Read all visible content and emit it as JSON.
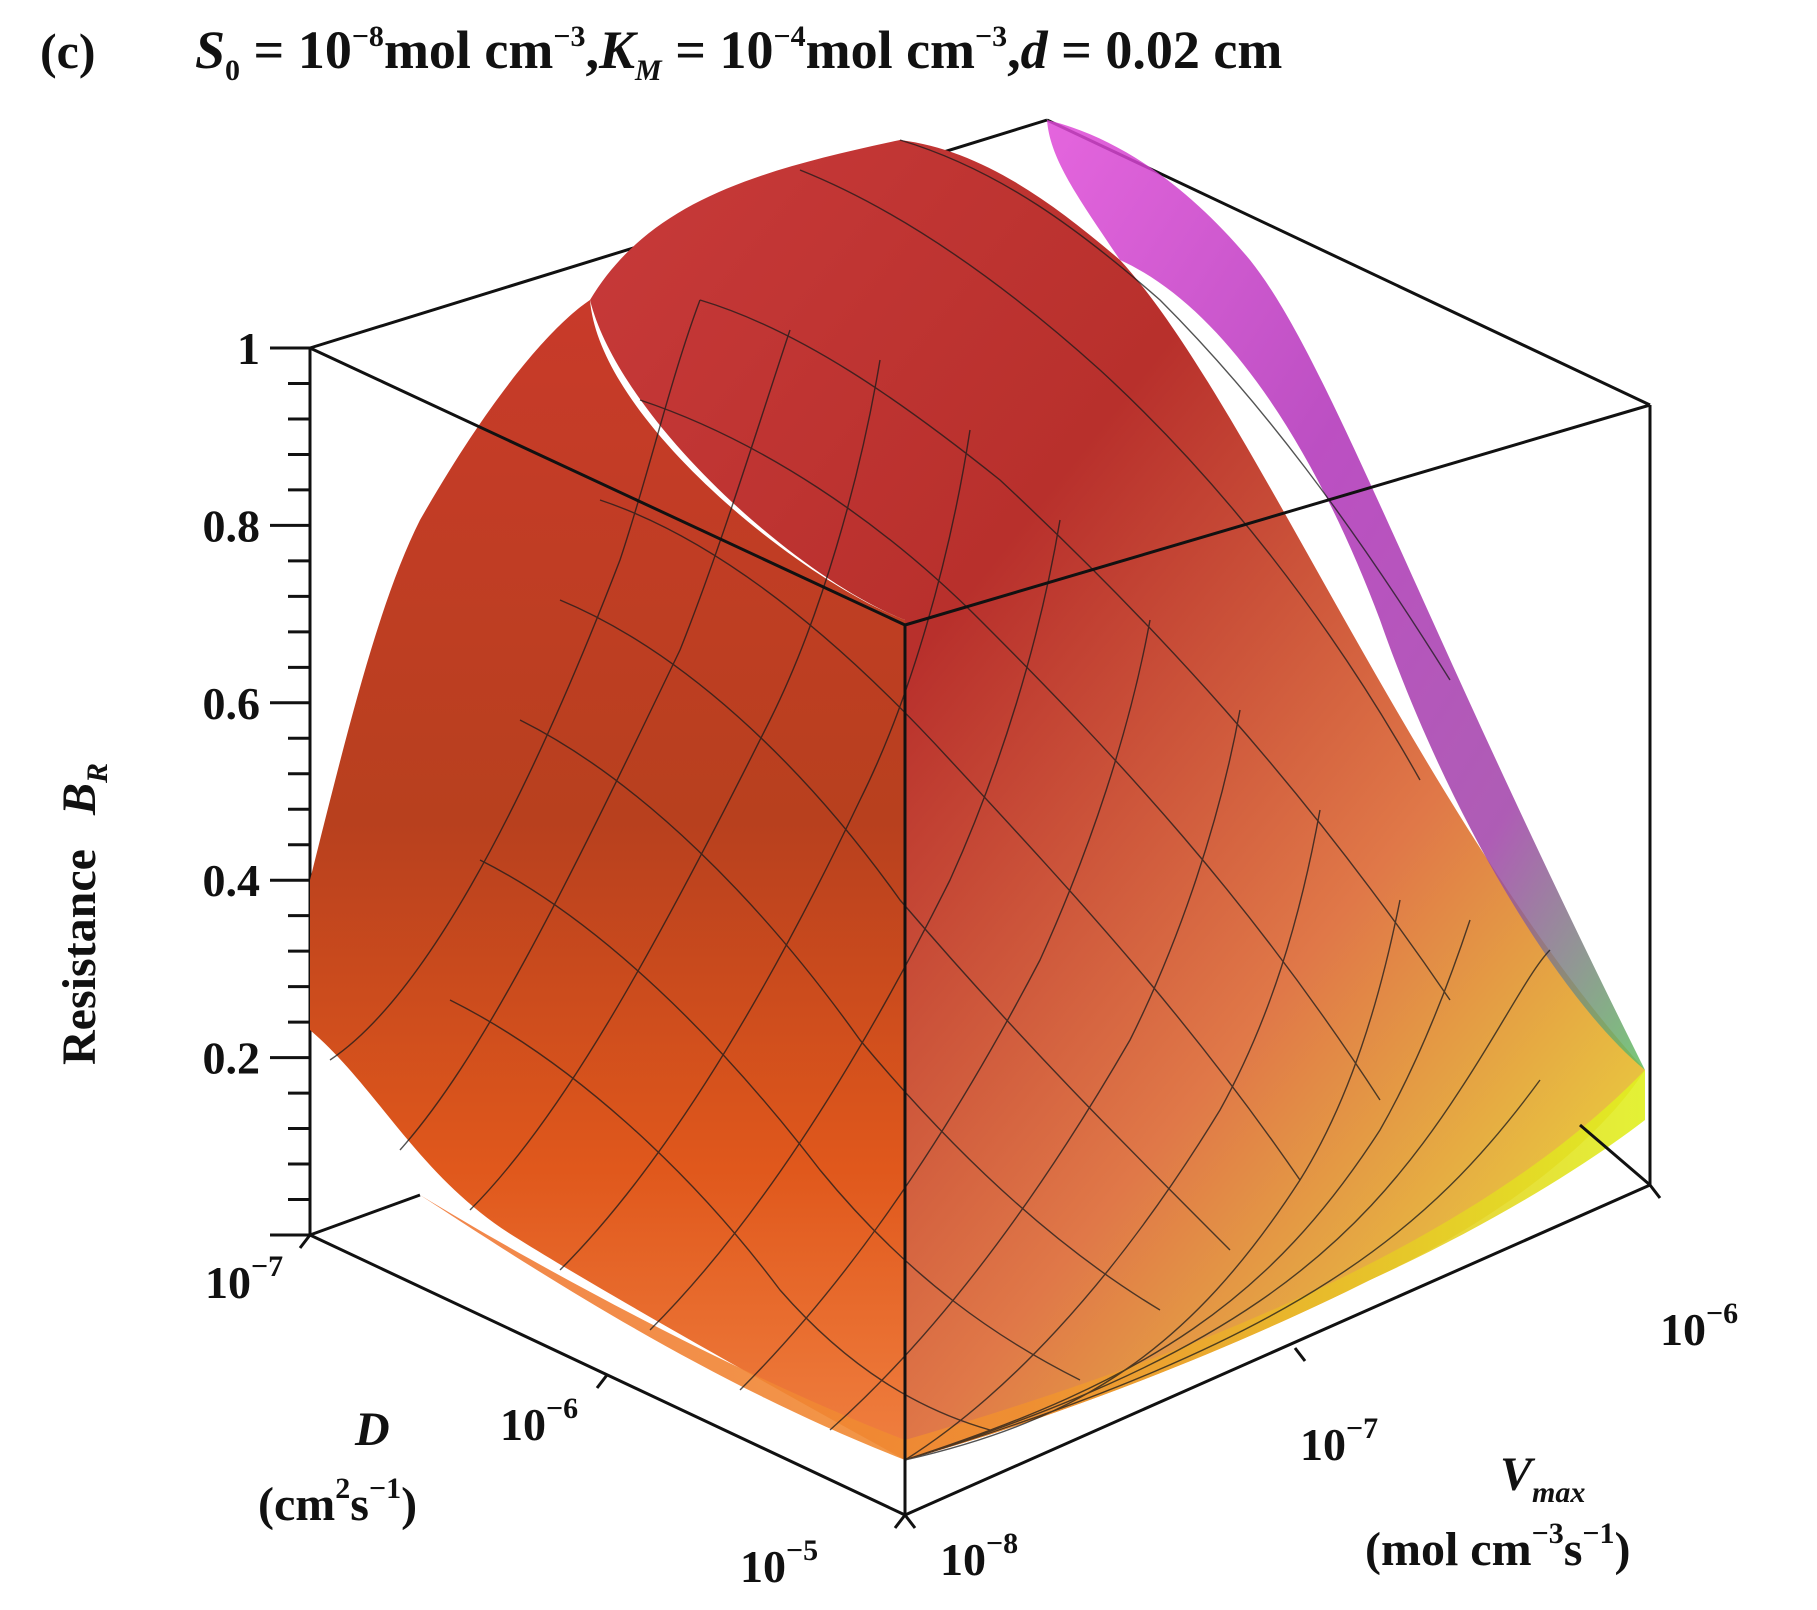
{
  "figure": {
    "panel_label": "(c)",
    "title": {
      "s0_symbol": "S",
      "s0_sub": "0",
      "s0_eq": " = 10",
      "s0_exp": "−8",
      "s0_unit": "mol cm",
      "s0_unit_exp": "−3",
      "km_sep": ",",
      "km_symbol": "K",
      "km_sub": "M",
      "km_eq": " = 10",
      "km_exp": "−4",
      "km_unit": "mol cm",
      "km_unit_exp": "−3",
      "d_sep": ",",
      "d_symbol": "d",
      "d_eq": " = 0.02 cm"
    }
  },
  "chart_data": {
    "type": "surface",
    "z_label": {
      "prefix": "Resistance",
      "symbol": "B",
      "sub": "R"
    },
    "x_label": {
      "symbol": "D",
      "unit": "(cm",
      "unit_exp1": "2",
      "unit_mid": "s",
      "unit_exp2": "−1",
      "unit_end": ")"
    },
    "y_label": {
      "symbol": "V",
      "sub": "max",
      "unit": "(mol cm",
      "unit_exp1": "−3",
      "unit_mid": "s",
      "unit_exp2": "−1",
      "unit_end": ")"
    },
    "z_ticks": [
      "1",
      "0.8",
      "0.6",
      "0.4",
      "0.2"
    ],
    "z_tick_values": [
      1,
      0.8,
      0.6,
      0.4,
      0.2
    ],
    "zlim": [
      0,
      1
    ],
    "x_ticks": [
      {
        "base": "10",
        "exp": "−7"
      },
      {
        "base": "10",
        "exp": "−6"
      },
      {
        "base": "10",
        "exp": "−5"
      }
    ],
    "y_ticks": [
      {
        "base": "10",
        "exp": "−8"
      },
      {
        "base": "10",
        "exp": "−7"
      },
      {
        "base": "10",
        "exp": "−6"
      }
    ],
    "x_scale": "log",
    "y_scale": "log",
    "xlim": [
      "1e-7",
      "1e-5"
    ],
    "ylim": [
      "1e-8",
      "1e-6"
    ],
    "colors": {
      "low": "#e6f020",
      "mid": "#e85a1c",
      "high_red": "#c83030",
      "high_magenta": "#d23ce0",
      "box": "#111111",
      "grid": "#1a1a1a"
    },
    "surface_edges": [
      {
        "edge": "D = 10^-7",
        "points": [
          {
            "vmax": "1e-8",
            "BR": 0.22
          },
          {
            "vmax": "1e-6",
            "BR": 1.0
          }
        ]
      },
      {
        "edge": "Vmax = 10^-6",
        "points": [
          {
            "D": "1e-7",
            "BR": 1.0
          },
          {
            "D": "1e-5",
            "BR": 0.16
          }
        ]
      }
    ]
  }
}
